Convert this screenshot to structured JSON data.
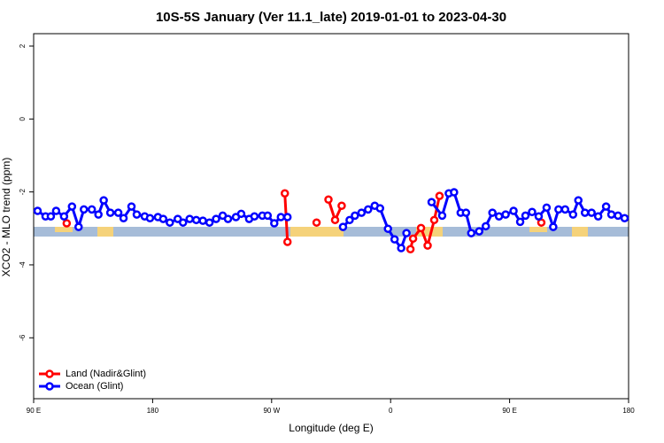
{
  "chart_data": {
    "type": "line",
    "title": "10S-5S January (Ver 11.1_late)   2019-01-01 to 2023-04-30",
    "xlabel": "Longitude (deg E)",
    "ylabel": "XCO2 - MLO trend (ppm)",
    "xlim": [
      90,
      540
    ],
    "xticks": [
      {
        "value": 90,
        "label": "90 E"
      },
      180,
      {
        "value": 270,
        "label": "90 W"
      },
      {
        "value": 360,
        "label": "0"
      },
      {
        "value": 450,
        "label": "90 E"
      },
      {
        "value": 540,
        "label": "180"
      }
    ],
    "ylim": [
      -7.67,
      2.34
    ],
    "yticks": [
      2,
      0,
      -2,
      -4,
      -6
    ],
    "legend": "bottom-left",
    "series": [
      {
        "name": "Land (Nadir&Glint)",
        "color": "#ff0000",
        "x": [
          115,
          200,
          280,
          282,
          293,
          304,
          308,
          313,
          318,
          323,
          350,
          375,
          377,
          383,
          388,
          393,
          397,
          430,
          474
        ],
        "values": [
          -2.86,
          null,
          -2.04,
          -3.37,
          null,
          -2.84,
          null,
          -2.21,
          -2.77,
          -2.38,
          null,
          -3.57,
          -3.28,
          -2.99,
          -3.47,
          -2.77,
          -2.11,
          null,
          -2.84
        ]
      },
      {
        "name": "Ocean (Glint)",
        "color": "#0000ff",
        "x": [
          93,
          99,
          103,
          107,
          113,
          119,
          124,
          128,
          134,
          139,
          143,
          148,
          154,
          158,
          164,
          168,
          174,
          178,
          184,
          188,
          193,
          199,
          203,
          208,
          213,
          218,
          223,
          228,
          233,
          237,
          243,
          247,
          253,
          257,
          263,
          267,
          272,
          277,
          282,
          300,
          324,
          329,
          333,
          338,
          343,
          348,
          352,
          358,
          363,
          368,
          372,
          380,
          391,
          399,
          404,
          408,
          413,
          417,
          421,
          427,
          432,
          437,
          442,
          447,
          453,
          458,
          462,
          467,
          472,
          478,
          483,
          487,
          492,
          498,
          502,
          507,
          512,
          517,
          523,
          527,
          532,
          537
        ],
        "values": [
          -2.52,
          -2.67,
          -2.67,
          -2.52,
          -2.67,
          -2.4,
          -2.96,
          -2.48,
          -2.48,
          -2.62,
          -2.23,
          -2.57,
          -2.57,
          -2.72,
          -2.4,
          -2.62,
          -2.67,
          -2.72,
          -2.69,
          -2.74,
          -2.84,
          -2.74,
          -2.84,
          -2.74,
          -2.77,
          -2.79,
          -2.84,
          -2.74,
          -2.65,
          -2.74,
          -2.69,
          -2.6,
          -2.74,
          -2.67,
          -2.65,
          -2.65,
          -2.86,
          -2.69,
          -2.69,
          null,
          -2.96,
          -2.77,
          -2.65,
          -2.57,
          -2.48,
          -2.38,
          -2.45,
          -3.01,
          -3.3,
          -3.54,
          -3.13,
          null,
          -2.28,
          -2.65,
          -2.04,
          -2.01,
          -2.57,
          -2.57,
          -3.13,
          -3.08,
          -2.94,
          -2.57,
          -2.67,
          -2.62,
          -2.52,
          -2.82,
          -2.65,
          -2.55,
          -2.67,
          -2.43,
          -2.96,
          -2.48,
          -2.48,
          -2.62,
          -2.23,
          -2.57,
          -2.57,
          -2.67,
          -2.4,
          -2.62,
          -2.65,
          -2.72
        ]
      }
    ]
  }
}
